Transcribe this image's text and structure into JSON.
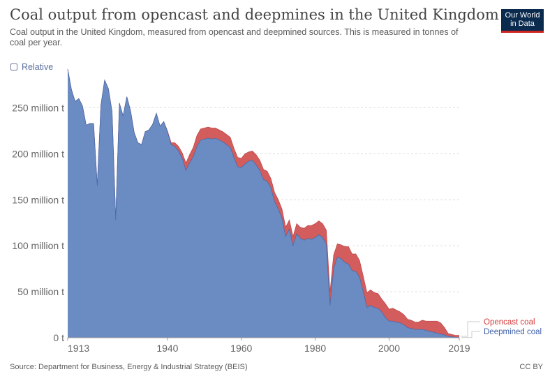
{
  "header": {
    "title": "Coal output from opencast and deepmines in the United Kingdom",
    "subtitle": "Coal output in the United Kingdom, measured from opencast and deepmined sources. This is measured in tonnes of coal per year."
  },
  "logo": {
    "line1": "Our World",
    "line2": "in Data"
  },
  "controls": {
    "relative_label": "Relative"
  },
  "footer": {
    "source": "Source: Department for Business, Energy & Industrial Strategy (BEIS)",
    "license": "CC BY"
  },
  "colors": {
    "opencast": "#d35c5c",
    "deepmined": "#6b8cc3",
    "grid": "#dddddd",
    "text": "#5b5b5b"
  },
  "chart_data": {
    "type": "area",
    "stacked": true,
    "title": "Coal output from opencast and deepmines in the United Kingdom",
    "xlabel": "",
    "ylabel": "",
    "xlim": [
      1913,
      2019
    ],
    "ylim": [
      0,
      280
    ],
    "y_ticks": [
      0,
      50,
      100,
      150,
      200,
      250
    ],
    "y_tick_labels": [
      "0 t",
      "50 million t",
      "100 million t",
      "150 million t",
      "200 million t",
      "250 million t"
    ],
    "x_ticks": [
      1913,
      1940,
      1960,
      1980,
      2000,
      2019
    ],
    "x_tick_labels": [
      "1913",
      "1940",
      "1960",
      "1980",
      "2000",
      "2019"
    ],
    "legend_position": "right",
    "x": [
      1913,
      1914,
      1915,
      1916,
      1917,
      1918,
      1919,
      1920,
      1921,
      1922,
      1923,
      1924,
      1925,
      1926,
      1927,
      1928,
      1929,
      1930,
      1931,
      1932,
      1933,
      1934,
      1935,
      1936,
      1937,
      1938,
      1939,
      1940,
      1941,
      1942,
      1943,
      1944,
      1945,
      1946,
      1947,
      1948,
      1949,
      1950,
      1951,
      1952,
      1953,
      1954,
      1955,
      1956,
      1957,
      1958,
      1959,
      1960,
      1961,
      1962,
      1963,
      1964,
      1965,
      1966,
      1967,
      1968,
      1969,
      1970,
      1971,
      1972,
      1973,
      1974,
      1975,
      1976,
      1977,
      1978,
      1979,
      1980,
      1981,
      1982,
      1983,
      1984,
      1985,
      1986,
      1987,
      1988,
      1989,
      1990,
      1991,
      1992,
      1993,
      1994,
      1995,
      1996,
      1997,
      1998,
      1999,
      2000,
      2001,
      2002,
      2003,
      2004,
      2005,
      2006,
      2007,
      2008,
      2009,
      2010,
      2011,
      2012,
      2013,
      2014,
      2015,
      2016,
      2017,
      2018,
      2019
    ],
    "series": [
      {
        "name": "Deepmined coal",
        "values": [
          292,
          270,
          257,
          260,
          252,
          231,
          233,
          233,
          165,
          253,
          280,
          271,
          246,
          128,
          255,
          241,
          262,
          247,
          223,
          212,
          210,
          224,
          226,
          232,
          244,
          230,
          235,
          224,
          210,
          208,
          203,
          195,
          182,
          190,
          197,
          208,
          215,
          216,
          217,
          216,
          217,
          215,
          213,
          210,
          207,
          196,
          186,
          185,
          189,
          192,
          193,
          188,
          182,
          172,
          170,
          163,
          148,
          140,
          130,
          110,
          118,
          100,
          113,
          108,
          106,
          108,
          107,
          109,
          112,
          109,
          102,
          35,
          75,
          88,
          86,
          82,
          80,
          73,
          72,
          66,
          50,
          33,
          35,
          33,
          32,
          28,
          22,
          18,
          18,
          17,
          16,
          14,
          11,
          10,
          9,
          9,
          9,
          8,
          7,
          6,
          5,
          4,
          3,
          1.5,
          1,
          0.5,
          0.5
        ]
      },
      {
        "name": "Opencast coal",
        "values": [
          0,
          0,
          0,
          0,
          0,
          0,
          0,
          0,
          0,
          0,
          0,
          0,
          0,
          0,
          0,
          0,
          0,
          0,
          0,
          0,
          0,
          0,
          0,
          0,
          0,
          0,
          0,
          1,
          2,
          4,
          5,
          6,
          8,
          9,
          10,
          12,
          12,
          12,
          12,
          12,
          11,
          11,
          11,
          11,
          11,
          10,
          10,
          10,
          11,
          10,
          10,
          11,
          11,
          11,
          11,
          10,
          10,
          10,
          10,
          10,
          10,
          10,
          11,
          12,
          13,
          14,
          15,
          15,
          15,
          15,
          15,
          14,
          15,
          14,
          15,
          17,
          19,
          18,
          19,
          18,
          17,
          16,
          17,
          16,
          16,
          14,
          15,
          13,
          14,
          13,
          12,
          11,
          9,
          9,
          8,
          8,
          10,
          10,
          11,
          12,
          13,
          12,
          8,
          3,
          2.5,
          2,
          2
        ]
      }
    ]
  }
}
